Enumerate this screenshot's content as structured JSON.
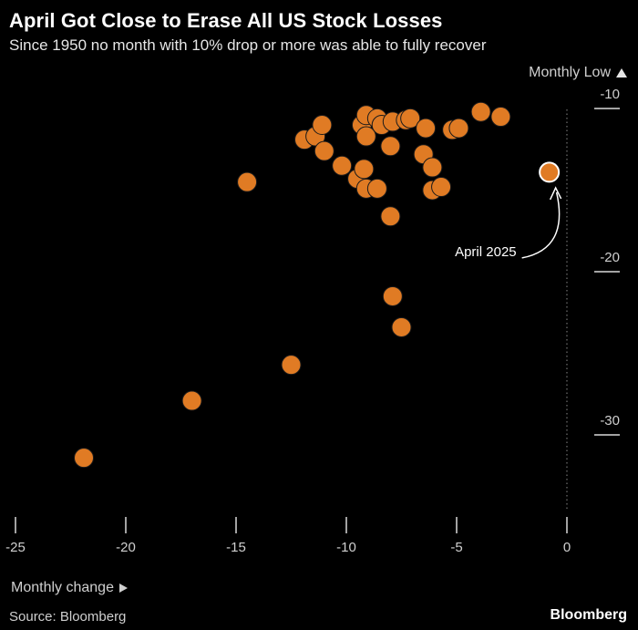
{
  "header": {
    "title": "April Got Close to Erase All US Stock Losses",
    "subtitle": "Since 1950 no month with 10% drop or more was able to fully recover"
  },
  "footer": {
    "source": "Source: Bloomberg",
    "brand": "Bloomberg"
  },
  "colors": {
    "background": "#000000",
    "point_fill": "#e07b24",
    "point_stroke": "#1a1a1a",
    "highlight_stroke": "#ffffff",
    "axis_text": "#cfcfcf"
  },
  "chart_data": {
    "type": "scatter",
    "xlabel": "Monthly change",
    "ylabel": "Monthly Low",
    "xlim": [
      -25,
      0
    ],
    "ylim": [
      -34,
      -9
    ],
    "xticks": [
      -25,
      -20,
      -15,
      -10,
      -5,
      0
    ],
    "xtick_labels": [
      "-25",
      "-20",
      "-15",
      "-10",
      "-5",
      "0"
    ],
    "yticks": [
      -10,
      -20,
      -30
    ],
    "ytick_labels": [
      "-10",
      "-20",
      "-30"
    ],
    "grid": false,
    "points": [
      {
        "x": -21.9,
        "y": -32.3
      },
      {
        "x": -17.0,
        "y": -28.8
      },
      {
        "x": -12.5,
        "y": -26.6
      },
      {
        "x": -7.5,
        "y": -24.3
      },
      {
        "x": -7.9,
        "y": -22.4
      },
      {
        "x": -14.5,
        "y": -15.4
      },
      {
        "x": -8.0,
        "y": -17.5
      },
      {
        "x": -11.9,
        "y": -12.8
      },
      {
        "x": -11.4,
        "y": -12.6
      },
      {
        "x": -11.1,
        "y": -11.9
      },
      {
        "x": -11.0,
        "y": -13.5
      },
      {
        "x": -10.2,
        "y": -14.4
      },
      {
        "x": -9.5,
        "y": -15.2
      },
      {
        "x": -9.2,
        "y": -14.6
      },
      {
        "x": -9.1,
        "y": -15.8
      },
      {
        "x": -8.6,
        "y": -15.8
      },
      {
        "x": -9.3,
        "y": -11.9
      },
      {
        "x": -9.1,
        "y": -11.3
      },
      {
        "x": -8.6,
        "y": -11.5
      },
      {
        "x": -8.4,
        "y": -11.9
      },
      {
        "x": -8.0,
        "y": -13.2
      },
      {
        "x": -9.1,
        "y": -12.6
      },
      {
        "x": -7.9,
        "y": -11.7
      },
      {
        "x": -7.3,
        "y": -11.6
      },
      {
        "x": -7.1,
        "y": -11.5
      },
      {
        "x": -6.4,
        "y": -12.1
      },
      {
        "x": -6.5,
        "y": -13.7
      },
      {
        "x": -6.1,
        "y": -14.5
      },
      {
        "x": -6.1,
        "y": -15.9
      },
      {
        "x": -5.7,
        "y": -15.7
      },
      {
        "x": -5.2,
        "y": -12.2
      },
      {
        "x": -4.9,
        "y": -12.1
      },
      {
        "x": -3.9,
        "y": -11.1
      },
      {
        "x": -3.0,
        "y": -11.4
      }
    ],
    "highlight": {
      "x": -0.8,
      "y": -14.8,
      "label": "April 2025"
    }
  }
}
